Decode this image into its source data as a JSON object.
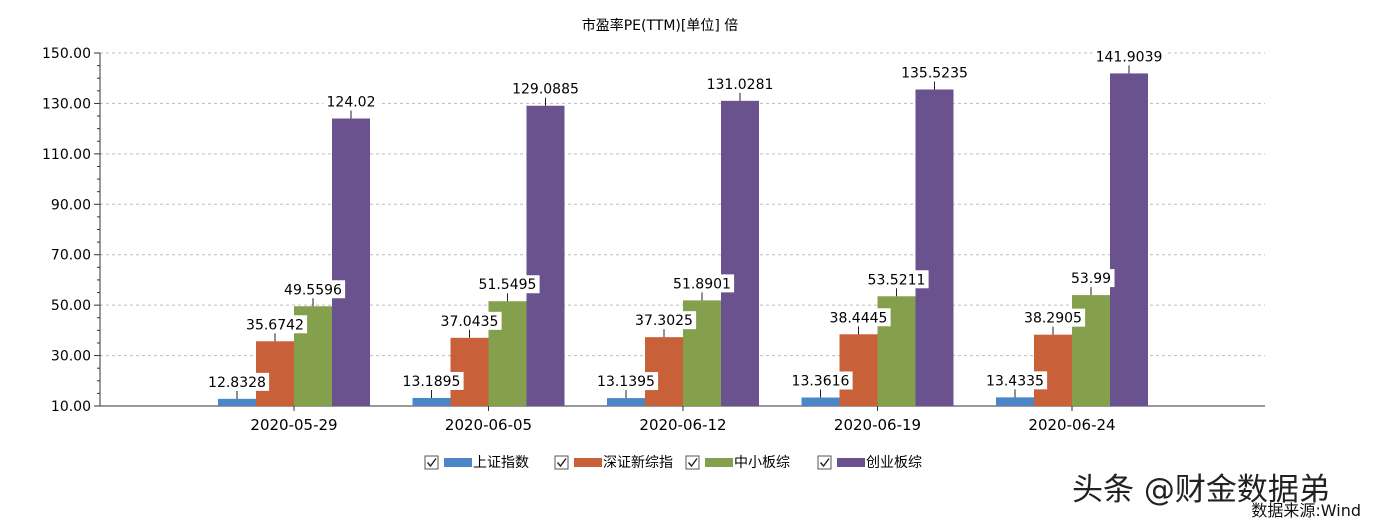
{
  "chart_data": {
    "type": "bar",
    "title": "市盈率PE(TTM)[单位] 倍",
    "xlabel": "",
    "ylabel": "",
    "ylim": [
      10,
      150
    ],
    "yticks": [
      "150.00",
      "130.00",
      "110.00",
      "90.00",
      "70.00",
      "50.00",
      "30.00",
      "10.00"
    ],
    "grid": true,
    "legend_position": "bottom",
    "categories": [
      "2020-05-29",
      "2020-06-05",
      "2020-06-12",
      "2020-06-19",
      "2020-06-24"
    ],
    "series": [
      {
        "name": "上证指数",
        "color": "#4a86c8",
        "values": [
          12.8328,
          13.1895,
          13.1395,
          13.3616,
          13.4335
        ],
        "labels": [
          "12.8328",
          "13.1895",
          "13.1395",
          "13.3616",
          "13.4335"
        ]
      },
      {
        "name": "深证新综指",
        "color": "#c8603a",
        "values": [
          35.6742,
          37.0435,
          37.3025,
          38.4445,
          38.2905
        ],
        "labels": [
          "35.6742",
          "37.0435",
          "37.3025",
          "38.4445",
          "38.2905"
        ]
      },
      {
        "name": "中小板综",
        "color": "#85a04c",
        "values": [
          49.5596,
          51.5495,
          51.8901,
          53.5211,
          53.99
        ],
        "labels": [
          "49.5596",
          "51.5495",
          "51.8901",
          "53.5211",
          "53.99"
        ]
      },
      {
        "name": "创业板综",
        "color": "#6a528f",
        "values": [
          124.02,
          129.0885,
          131.0281,
          135.5235,
          141.9039
        ],
        "labels": [
          "124.02",
          "129.0885",
          "131.0281",
          "135.5235",
          "141.9039"
        ]
      }
    ]
  },
  "watermark": "头条 @财金数据弟",
  "source": "数据来源:Wind"
}
